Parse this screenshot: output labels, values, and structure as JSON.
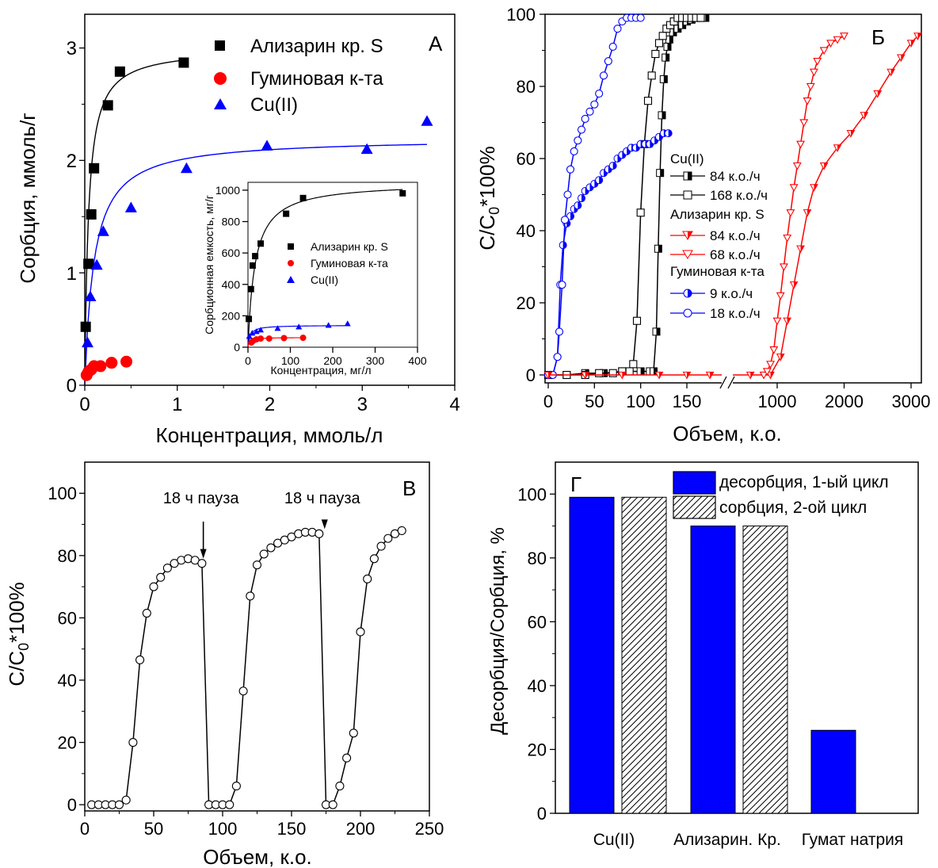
{
  "colors": {
    "black": "#000000",
    "red": "#ff0000",
    "blue": "#0000ff",
    "white": "#ffffff"
  },
  "chart_data": [
    {
      "panel": "А",
      "type": "scatter",
      "xlabel": "Концентрация, ммоль/л",
      "ylabel": "Сорбция, ммоль/г",
      "xlim": [
        0,
        4
      ],
      "ylim": [
        0,
        3.3
      ],
      "x_ticks": [
        "0",
        "1",
        "2",
        "3",
        "4"
      ],
      "y_ticks": [
        "0",
        "1",
        "2",
        "3"
      ],
      "legend_position": "top-right",
      "series": [
        {
          "name": "Ализарин кр. S",
          "color": "#000000",
          "marker": "square",
          "x": [
            0.01,
            0.04,
            0.07,
            0.1,
            0.25,
            0.38,
            1.07
          ],
          "y": [
            0.52,
            1.08,
            1.52,
            1.93,
            2.49,
            2.79,
            2.87
          ]
        },
        {
          "name": "Гуминовая к-та",
          "color": "#ff0000",
          "marker": "circle",
          "x": [
            0.02,
            0.04,
            0.07,
            0.1,
            0.17,
            0.29,
            0.45
          ],
          "y": [
            0.09,
            0.12,
            0.14,
            0.17,
            0.17,
            0.2,
            0.21
          ]
        },
        {
          "name": "Cu(II)",
          "color": "#0000ff",
          "marker": "triangle",
          "x": [
            0.03,
            0.06,
            0.13,
            0.2,
            0.5,
            1.1,
            1.97,
            3.05,
            3.7
          ],
          "y": [
            0.38,
            0.79,
            1.07,
            1.37,
            1.58,
            1.93,
            2.13,
            2.1,
            2.35
          ]
        }
      ],
      "fits": [
        {
          "color": "#000000",
          "qmax": 3.0,
          "k": 25,
          "xmax": 1.07
        },
        {
          "color": "#0000ff",
          "qmax": 2.2,
          "k": 10,
          "xmax": 3.7
        }
      ],
      "inset": {
        "type": "scatter",
        "xlabel": "Концентрация, мг/л",
        "ylabel": "Сорбционная емкость, мг/г",
        "xlim": [
          0,
          400
        ],
        "ylim": [
          0,
          1050
        ],
        "x_ticks": [
          "0",
          "100",
          "200",
          "300",
          "400"
        ],
        "y_ticks": [
          "0",
          "200",
          "400",
          "600",
          "800",
          "1000"
        ],
        "series": [
          {
            "name": "Ализарин кр. S",
            "color": "#000000",
            "marker": "square",
            "x": [
              2,
              7,
              11,
              17,
              30,
              90,
              130,
              365
            ],
            "y": [
              180,
              370,
              520,
              580,
              660,
              850,
              950,
              980
            ]
          },
          {
            "name": "Гуминовая к-та",
            "color": "#ff0000",
            "marker": "circle",
            "x": [
              8,
              12,
              20,
              30,
              50,
              85,
              130
            ],
            "y": [
              30,
              40,
              50,
              55,
              55,
              58,
              60
            ]
          },
          {
            "name": "Cu(II)",
            "color": "#0000ff",
            "marker": "triangle",
            "x": [
              3,
              10,
              20,
              30,
              70,
              120,
              190,
              235
            ],
            "y": [
              70,
              90,
              100,
              110,
              120,
              130,
              140,
              150
            ]
          }
        ],
        "fits": [
          {
            "color": "#000000",
            "qmax": 1050,
            "k": 0.06,
            "xmax": 365
          },
          {
            "color": "#0000ff",
            "qmax": 140,
            "k": 0.2,
            "xmax": 235
          },
          {
            "color": "#ff0000",
            "qmax": 62,
            "k": 0.3,
            "xmax": 130
          }
        ]
      }
    },
    {
      "panel": "Б",
      "type": "line",
      "xlabel": "Объем, к.о.",
      "ylabel": "C/C₀*100%",
      "x_break": true,
      "x_left_lim": [
        0,
        180
      ],
      "x_right_lim": [
        500,
        3150
      ],
      "x_left_ticks": [
        "0",
        "50",
        "100",
        "150"
      ],
      "x_right_ticks": [
        "1000",
        "2000",
        "3000"
      ],
      "ylim": [
        0,
        100
      ],
      "y_ticks": [
        "0",
        "20",
        "40",
        "60",
        "80",
        "100"
      ],
      "legend_groups": [
        {
          "title": "Cu(II)",
          "entries": [
            {
              "label": "84 к.о./ч",
              "color": "#000000",
              "marker": "half-square"
            },
            {
              "label": "168 к.о./ч",
              "color": "#000000",
              "marker": "open-square"
            }
          ]
        },
        {
          "title": "Ализарин кр. S",
          "entries": [
            {
              "label": "84 к.о./ч",
              "color": "#ff0000",
              "marker": "half-triangle-down"
            },
            {
              "label": "68 к.о./ч",
              "color": "#ff0000",
              "marker": "open-triangle-down"
            }
          ]
        },
        {
          "title": "Гуминовая к-та",
          "entries": [
            {
              "label": "9 к.о./ч",
              "color": "#0000ff",
              "marker": "half-circle"
            },
            {
              "label": "18 к.о./ч",
              "color": "#0000ff",
              "marker": "open-circle"
            }
          ]
        }
      ],
      "series": [
        {
          "name": "Cu(II) 84 к.о./ч",
          "color": "#000000",
          "marker": "half-square",
          "x": [
            0,
            20,
            40,
            60,
            80,
            100,
            110,
            114,
            117,
            119,
            121,
            123,
            125,
            127,
            129,
            131,
            135,
            140,
            145,
            150,
            155,
            160,
            165,
            170
          ],
          "y": [
            0,
            0,
            0.5,
            0.5,
            1,
            1,
            1,
            1,
            12,
            35,
            56,
            72,
            82,
            88,
            91,
            93,
            95,
            96,
            97,
            98,
            98.5,
            99,
            99,
            99
          ]
        },
        {
          "name": "Cu(II) 168 к.о./ч",
          "color": "#000000",
          "marker": "open-square",
          "x": [
            0,
            20,
            40,
            55,
            70,
            80,
            88,
            92,
            96,
            100,
            104,
            108,
            112,
            116,
            120,
            124,
            128,
            132,
            136,
            140,
            145,
            150,
            155,
            160,
            165
          ],
          "y": [
            0,
            0,
            0,
            0.5,
            0.5,
            1,
            1,
            3,
            15,
            45,
            64,
            76,
            83,
            89,
            92,
            94,
            96,
            97,
            98,
            99,
            99,
            99,
            99,
            99,
            99
          ]
        },
        {
          "name": "Гуминовая к-та 9 к.о./ч",
          "color": "#0000ff",
          "marker": "half-circle",
          "x": [
            0,
            5,
            10,
            13,
            16,
            20,
            24,
            28,
            32,
            36,
            40,
            45,
            50,
            55,
            60,
            65,
            70,
            75,
            80,
            85,
            90,
            95,
            100,
            105,
            110,
            115,
            120,
            125,
            130
          ],
          "y": [
            0,
            0,
            5,
            25,
            36,
            42,
            44,
            46,
            47,
            49,
            51,
            52,
            53,
            54,
            56,
            57,
            58,
            60,
            61,
            62,
            63,
            63,
            64,
            64,
            64,
            65,
            66,
            67,
            67
          ]
        },
        {
          "name": "Гуминовая к-та 18 к.о./ч",
          "color": "#0000ff",
          "marker": "open-circle",
          "x": [
            0,
            5,
            10,
            12,
            15,
            18,
            21,
            24,
            28,
            32,
            36,
            40,
            45,
            50,
            55,
            60,
            65,
            70,
            75,
            80,
            85,
            90,
            95,
            100
          ],
          "y": [
            0,
            0,
            5,
            12,
            25,
            43,
            50,
            57,
            62,
            65,
            68,
            71,
            73,
            75,
            78,
            83,
            87,
            91,
            96,
            98,
            99,
            99,
            99,
            99
          ]
        },
        {
          "name": "Ализарин кр. S 84 к.о./ч",
          "color": "#ff0000",
          "marker": "half-triangle-down",
          "x": [
            0,
            40,
            80,
            120,
            150,
            175,
            600,
            900,
            1050,
            1150,
            1250,
            1350,
            1450,
            1550,
            1700,
            1900,
            2100,
            2300,
            2500,
            2700,
            2850,
            3000,
            3100
          ],
          "y": [
            0,
            0,
            0,
            0,
            0,
            0,
            0,
            0,
            5,
            15,
            25,
            35,
            45,
            52,
            58,
            63,
            67,
            72,
            78,
            84,
            88,
            92,
            94
          ]
        },
        {
          "name": "Ализарин кр. S 68 к.о./ч",
          "color": "#ff0000",
          "marker": "open-triangle-down",
          "x": [
            800,
            850,
            900,
            950,
            1000,
            1050,
            1100,
            1150,
            1200,
            1250,
            1300,
            1350,
            1400,
            1450,
            1500,
            1550,
            1600,
            1700,
            1800,
            1900,
            2000
          ],
          "y": [
            0,
            1,
            3,
            7,
            15,
            22,
            30,
            38,
            45,
            52,
            58,
            64,
            70,
            76,
            80,
            84,
            87,
            90,
            92,
            93,
            94
          ]
        }
      ]
    },
    {
      "panel": "В",
      "type": "line",
      "xlabel": "Объем, к.о.",
      "ylabel": "C/C₀*100%",
      "xlim": [
        0,
        250
      ],
      "ylim": [
        -2,
        110
      ],
      "x_ticks": [
        "0",
        "50",
        "100",
        "150",
        "200",
        "250"
      ],
      "y_ticks": [
        "0",
        "20",
        "40",
        "60",
        "80",
        "100"
      ],
      "annotations": [
        {
          "text": "18 ч пауза",
          "x": 86,
          "y": 77.5
        },
        {
          "text": "18 ч пауза",
          "x": 174,
          "y": 87
        }
      ],
      "series": [
        {
          "name": "",
          "color": "#000000",
          "marker": "open-circle",
          "x": [
            5,
            10,
            15,
            20,
            25,
            30,
            35,
            40,
            45,
            50,
            55,
            60,
            65,
            70,
            75,
            80,
            85,
            90,
            95,
            100,
            105,
            110,
            115,
            120,
            125,
            130,
            135,
            140,
            145,
            150,
            155,
            160,
            165,
            170,
            175,
            180,
            185,
            190,
            195,
            200,
            205,
            210,
            215,
            220,
            225,
            230
          ],
          "y": [
            0,
            0,
            0,
            0,
            0,
            1.5,
            20,
            46.5,
            61.5,
            70,
            73,
            76,
            77.5,
            78.5,
            79,
            78.5,
            77.5,
            0,
            0,
            0,
            0,
            6,
            36.5,
            67,
            77,
            80.5,
            82.5,
            84,
            85,
            86,
            87,
            87.5,
            87.5,
            87,
            0,
            0,
            6,
            15,
            23,
            55.5,
            72.5,
            79,
            83,
            85.5,
            87,
            88
          ]
        }
      ]
    },
    {
      "panel": "Г",
      "type": "bar",
      "ylabel": "Десорбция/Сорбция, %",
      "categories": [
        "Cu(II)",
        "Ализарин. Кр.",
        "Гумат натрия"
      ],
      "ylim": [
        0,
        110
      ],
      "y_ticks": [
        "0",
        "20",
        "40",
        "60",
        "80",
        "100"
      ],
      "legend_position": "top-right",
      "series": [
        {
          "name": "десорбция, 1-ый цикл",
          "color": "#0000ff",
          "pattern": "solid",
          "values": [
            99,
            90,
            26
          ]
        },
        {
          "name": "сорбция, 2-ой цикл",
          "color": "#ffffff",
          "pattern": "hatched",
          "values": [
            99,
            90,
            null
          ]
        }
      ]
    }
  ]
}
